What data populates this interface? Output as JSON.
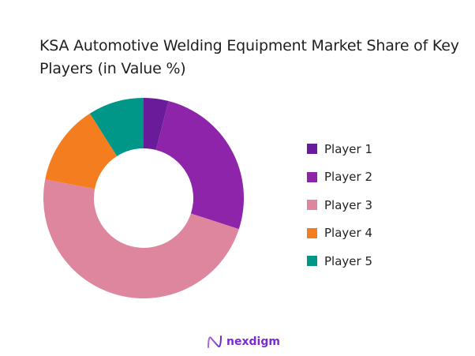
{
  "title": "KSA Automotive Welding Equipment Market Share of Key Players (in Value %)",
  "legend": [
    {
      "label": "Player 1",
      "color": "#6a1b9a"
    },
    {
      "label": "Player 2",
      "color": "#8e24aa"
    },
    {
      "label": "Player 3",
      "color": "#de869e"
    },
    {
      "label": "Player 4",
      "color": "#f47d20"
    },
    {
      "label": "Player 5",
      "color": "#009688"
    }
  ],
  "logo": {
    "text": "nexdigm",
    "icon": "nexdigm-wave-icon"
  },
  "chart_data": {
    "type": "pie",
    "variant": "donut",
    "title": "KSA Automotive Welding Equipment Market Share of Key Players (in Value %)",
    "categories": [
      "Player 1",
      "Player 2",
      "Player 3",
      "Player 4",
      "Player 5"
    ],
    "values": [
      4,
      26,
      48,
      13,
      9
    ],
    "colors": [
      "#6a1b9a",
      "#8e24aa",
      "#de869e",
      "#f47d20",
      "#009688"
    ],
    "unit": "%",
    "legend_position": "right",
    "start_angle": "12 o'clock, clockwise"
  }
}
